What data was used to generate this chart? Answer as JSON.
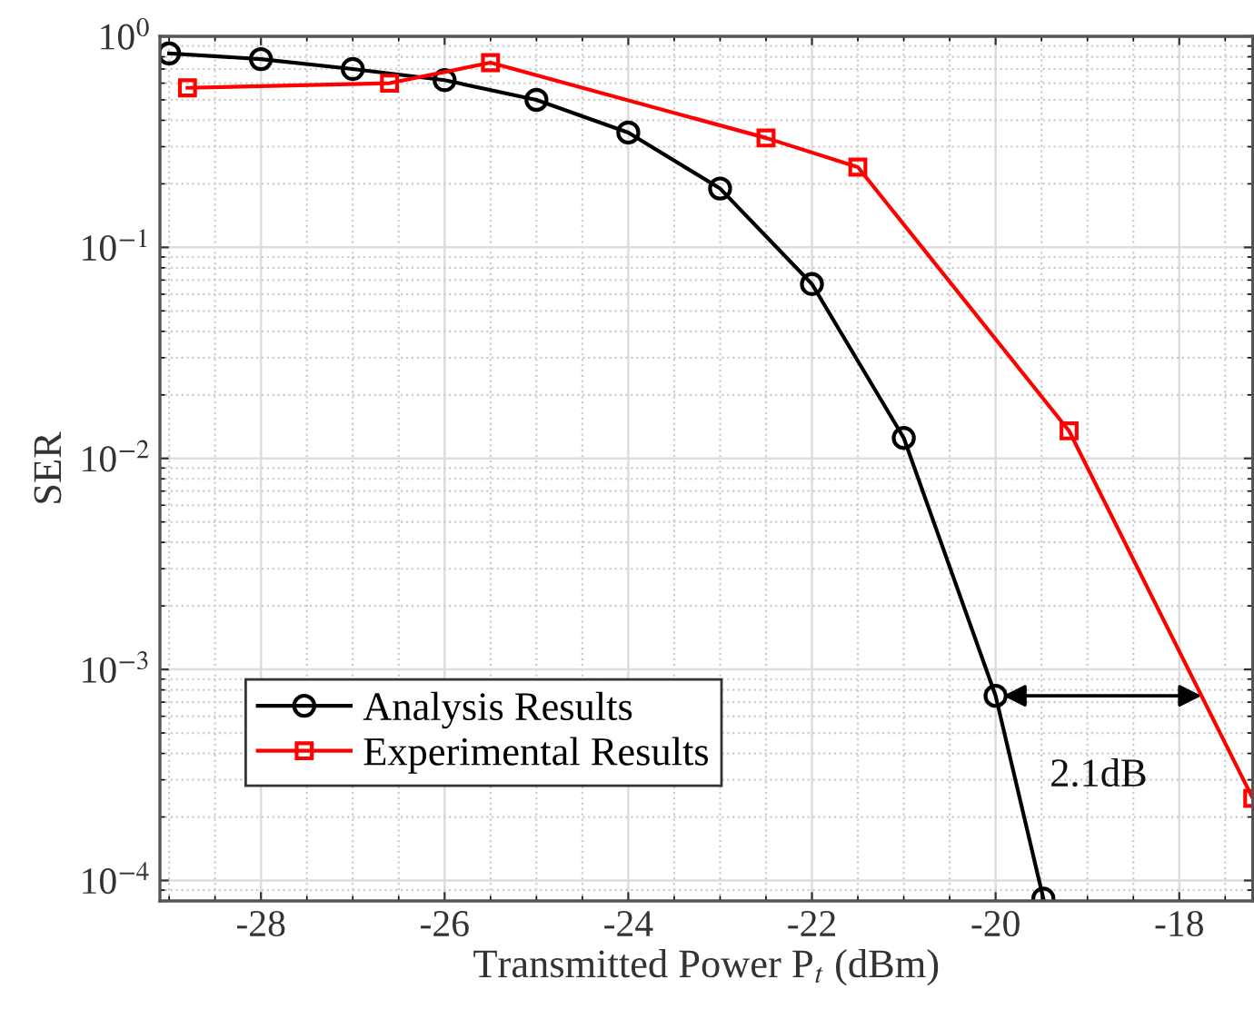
{
  "chart_data": {
    "type": "line",
    "xlabel": "Transmitted Power P$_{t}$ (dBm)",
    "ylabel": "SER",
    "log": "y",
    "grid": true,
    "legend": "bottom left",
    "series": [
      {
        "name": "Analysis Results",
        "color": "#000000",
        "marker": "circle",
        "x": [
          -29,
          -28,
          -27,
          -26,
          -25,
          -24,
          -23,
          -22,
          -21,
          -20,
          -19.48
        ],
        "values": [
          0.83,
          0.78,
          0.7,
          0.62,
          0.5,
          0.35,
          0.19,
          0.067,
          0.0125,
          0.00075,
          8.2e-05
        ]
      },
      {
        "name": "Experimental Results",
        "color": "#ff0000",
        "marker": "square",
        "x": [
          -28.8,
          -26.6,
          -25.5,
          -22.5,
          -21.5,
          -19.2,
          -17.2
        ],
        "values": [
          0.57,
          0.6,
          0.75,
          0.33,
          0.24,
          0.0135,
          0.000245
        ]
      }
    ],
    "xlim": [
      -29.1,
      -17.2
    ],
    "xticks": [
      -28,
      -26,
      -24,
      -22,
      -20,
      -18
    ],
    "ylim": [
      8e-05,
      1
    ],
    "yticks": [
      {
        "value": 0.0001,
        "label": "10$^{−4}$"
      },
      {
        "value": 0.001,
        "label": "10$^{−3}$"
      },
      {
        "value": 0.01,
        "label": "10$^{−2}$"
      },
      {
        "value": 0.1,
        "label": "10$^{−1}$"
      },
      {
        "value": 1,
        "label": "10$^{0}$"
      }
    ],
    "annotations": [
      "2.1dB"
    ]
  }
}
